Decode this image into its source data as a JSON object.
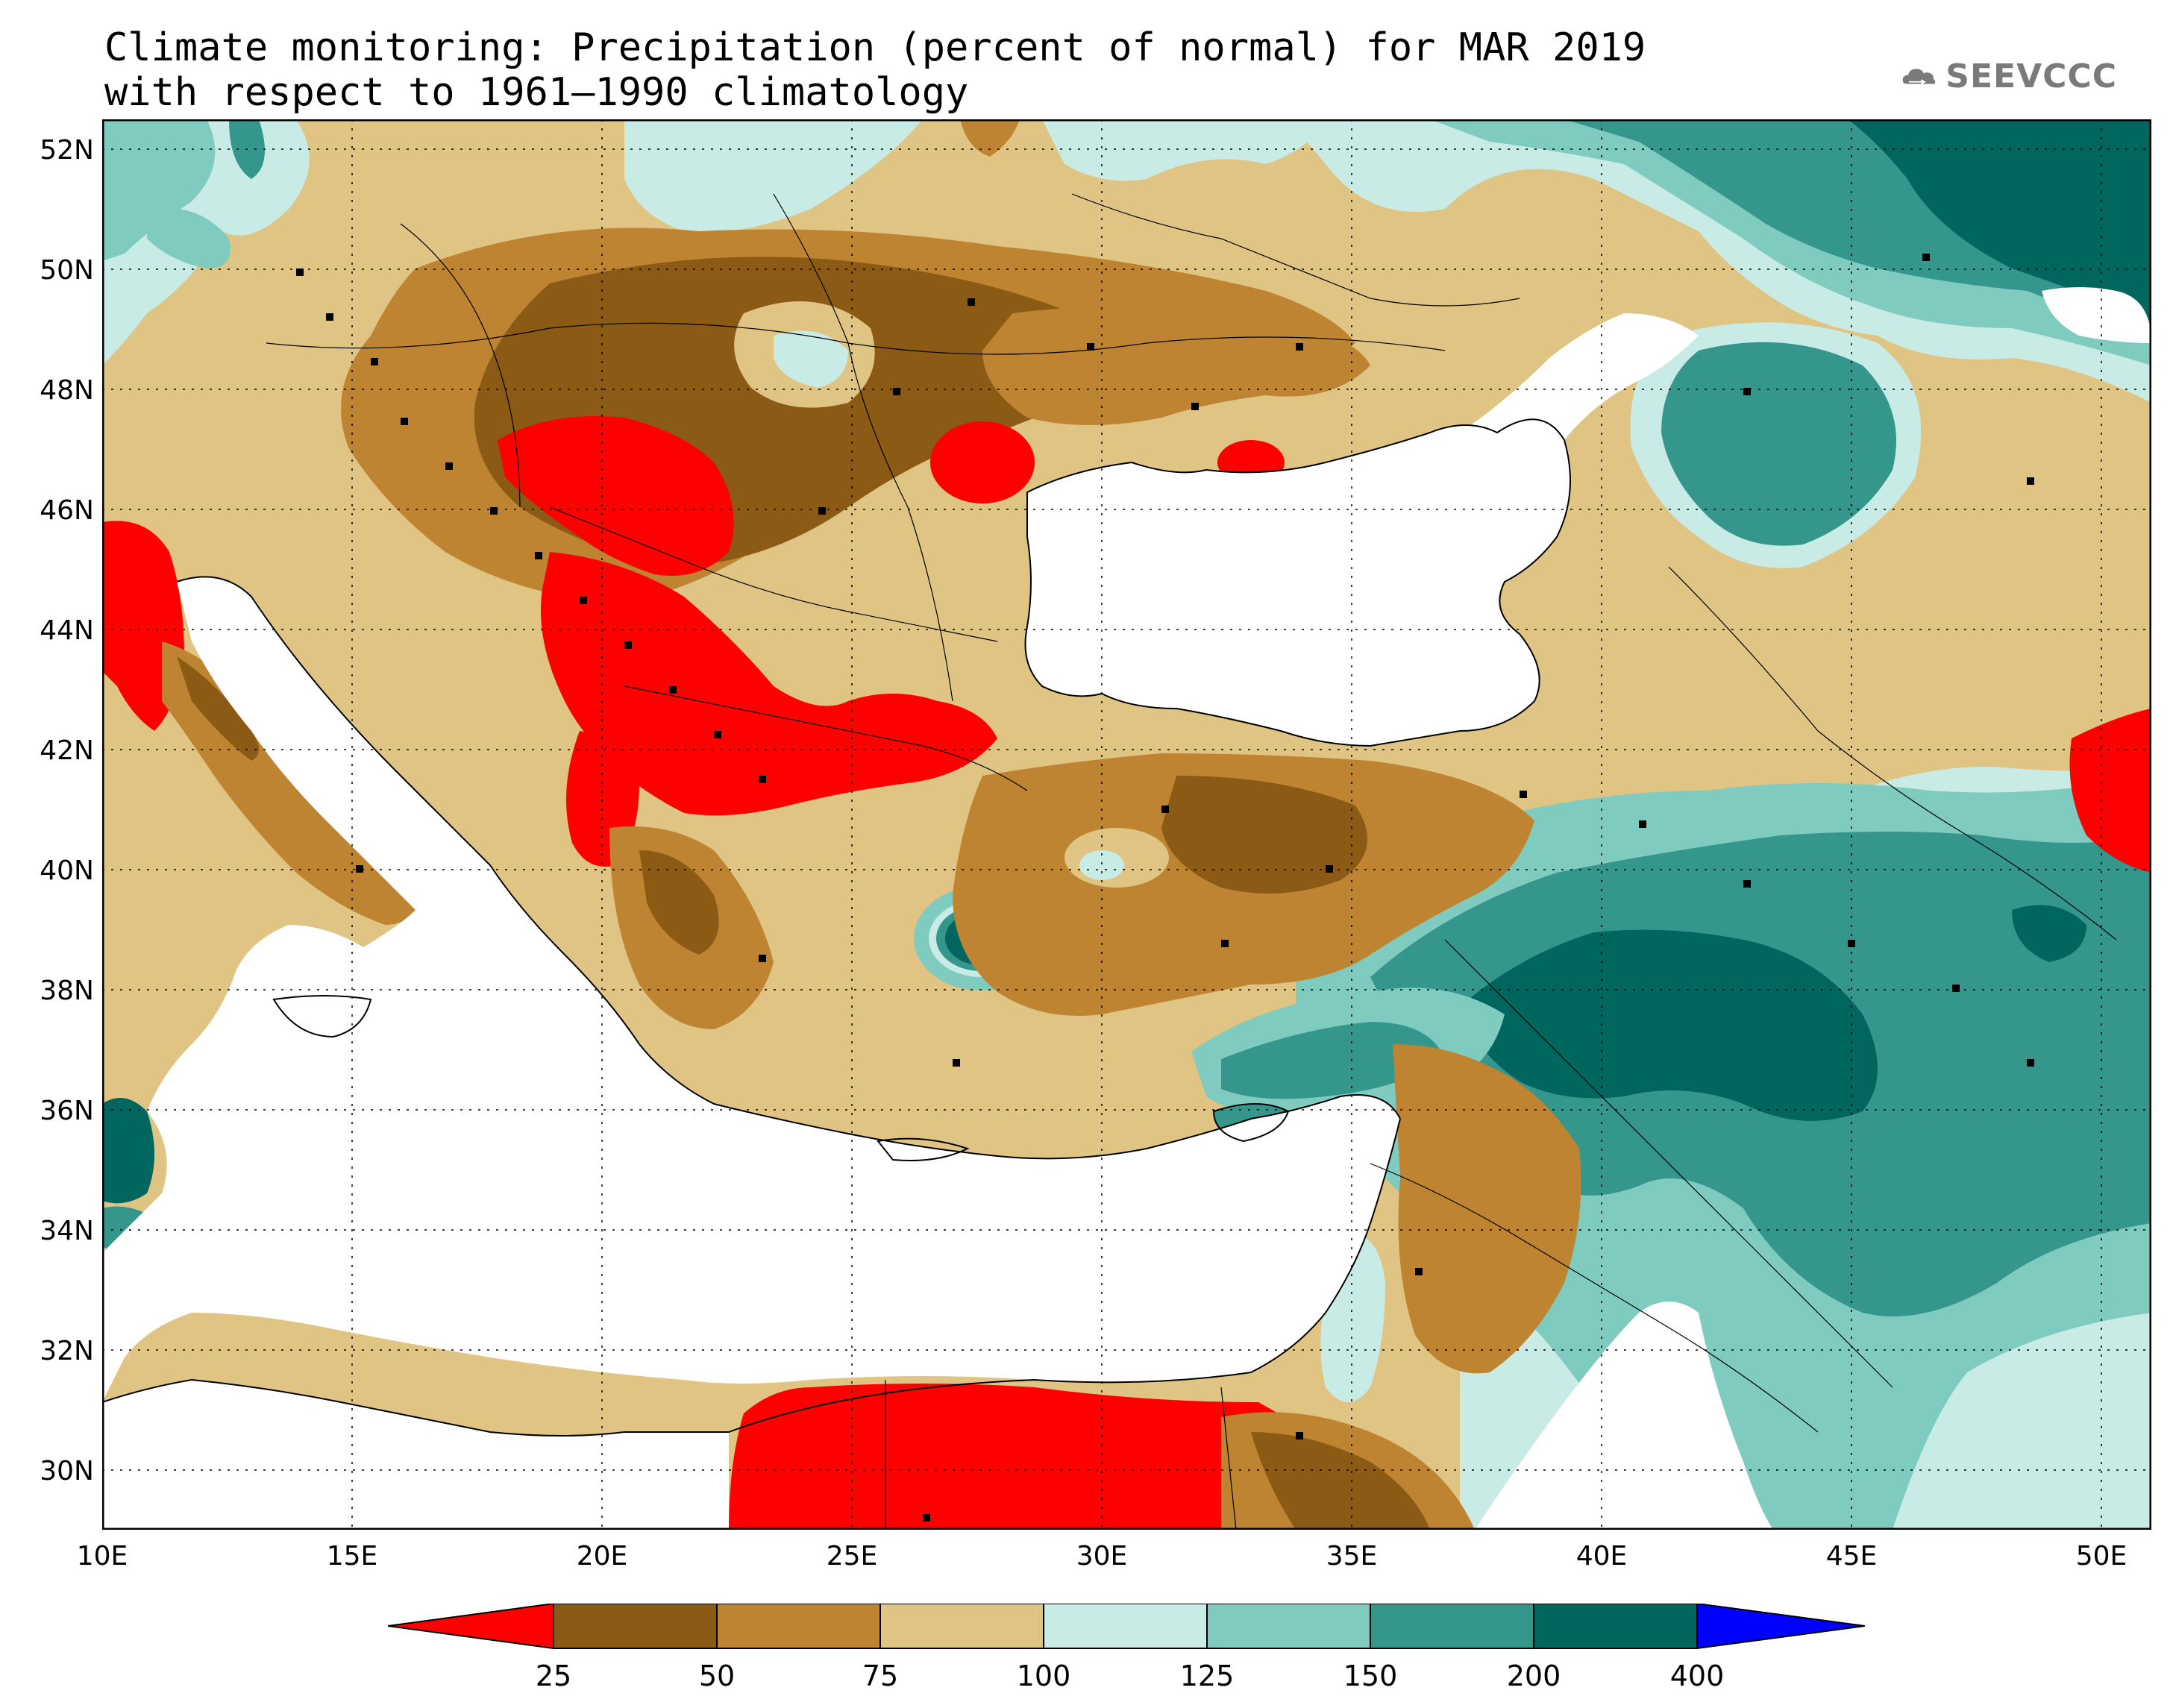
{
  "title": {
    "line1": "Climate monitoring: Precipitation (percent of normal) for MAR 2019",
    "line2": "with respect to 1961–1990 climatology"
  },
  "logo": {
    "text": "SEEVCCC",
    "icon": "cloud-logo-icon",
    "color": "#7a7a7a"
  },
  "map": {
    "lon_range": [
      10,
      51
    ],
    "lat_range": [
      29,
      52.5
    ],
    "lon_ticks": [
      "10E",
      "15E",
      "20E",
      "25E",
      "30E",
      "35E",
      "40E",
      "45E",
      "50E"
    ],
    "lat_ticks": [
      "52N",
      "50N",
      "48N",
      "46N",
      "44N",
      "42N",
      "40N",
      "38N",
      "36N",
      "34N",
      "32N",
      "30N"
    ]
  },
  "legend": {
    "bins": [
      {
        "color": "#ff0000"
      },
      {
        "color": "#8b5a14"
      },
      {
        "color": "#bf8432"
      },
      {
        "color": "#e0c483"
      },
      {
        "color": "#c8ebe5"
      },
      {
        "color": "#7fcbbf"
      },
      {
        "color": "#35968c"
      },
      {
        "color": "#01665e"
      },
      {
        "color": "#0000ff"
      }
    ],
    "labels": [
      "25",
      "50",
      "75",
      "100",
      "125",
      "150",
      "200",
      "400"
    ]
  },
  "colors": {
    "below_25": "#ff0000",
    "p25_50": "#8b5a14",
    "p50_75": "#bf8432",
    "p75_100": "#e0c483",
    "p100_125": "#c8ebe5",
    "p125_150": "#7fcbbf",
    "p150_200": "#35968c",
    "p200_400": "#01665e",
    "above_400": "#0000ff"
  }
}
